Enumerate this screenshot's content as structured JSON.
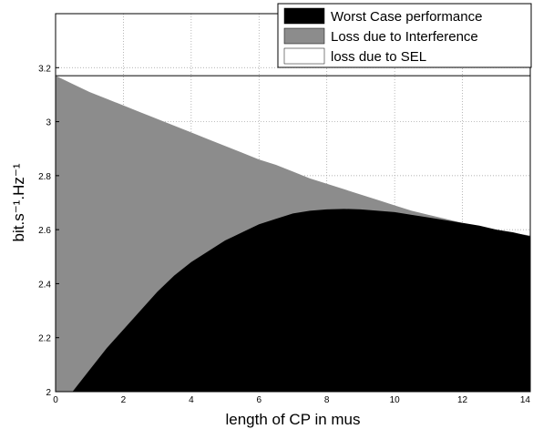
{
  "chart_data": {
    "type": "area",
    "xlabel": "length of CP in mus",
    "ylabel": "bit.s⁻¹.Hz⁻¹",
    "xlim": [
      0,
      14
    ],
    "ylim": [
      2,
      3.4
    ],
    "x_ticks": [
      "0",
      "2",
      "4",
      "6",
      "8",
      "10",
      "12",
      "14"
    ],
    "y_ticks": [
      "2",
      "2.2",
      "2.4",
      "2.6",
      "2.8",
      "3",
      "3.2"
    ],
    "grid": true,
    "legend_position": "top-right",
    "colors": {
      "worst_case": "#000000",
      "interference": "#8c8c8c",
      "sel": "#ffffff"
    },
    "x": [
      0,
      0.5,
      1,
      1.5,
      2,
      2.5,
      3,
      3.5,
      4,
      4.5,
      5,
      5.5,
      6,
      6.5,
      7,
      7.5,
      8,
      8.5,
      9,
      9.5,
      10,
      10.5,
      11,
      11.5,
      12,
      12.5,
      13,
      13.5,
      14
    ],
    "series": [
      {
        "name": "Worst Case performance",
        "values": [
          1.87,
          2.0,
          2.08,
          2.16,
          2.23,
          2.3,
          2.37,
          2.43,
          2.48,
          2.52,
          2.56,
          2.59,
          2.62,
          2.64,
          2.66,
          2.67,
          2.675,
          2.677,
          2.675,
          2.67,
          2.665,
          2.655,
          2.645,
          2.635,
          2.625,
          2.615,
          2.6,
          2.59,
          2.575
        ]
      },
      {
        "name": "Loss due to Interference",
        "values": [
          3.17,
          3.14,
          3.11,
          3.085,
          3.06,
          3.035,
          3.01,
          2.985,
          2.96,
          2.935,
          2.91,
          2.885,
          2.86,
          2.84,
          2.815,
          2.79,
          2.77,
          2.75,
          2.73,
          2.71,
          2.69,
          2.67,
          2.655,
          2.64,
          2.625,
          2.61,
          2.598,
          2.588,
          2.578
        ]
      },
      {
        "name": "loss due to SEL",
        "values": [
          3.17,
          3.17,
          3.17,
          3.17,
          3.17,
          3.17,
          3.17,
          3.17,
          3.17,
          3.17,
          3.17,
          3.17,
          3.17,
          3.17,
          3.17,
          3.17,
          3.17,
          3.17,
          3.17,
          3.17,
          3.17,
          3.17,
          3.17,
          3.17,
          3.17,
          3.17,
          3.17,
          3.17,
          3.17
        ]
      }
    ]
  }
}
